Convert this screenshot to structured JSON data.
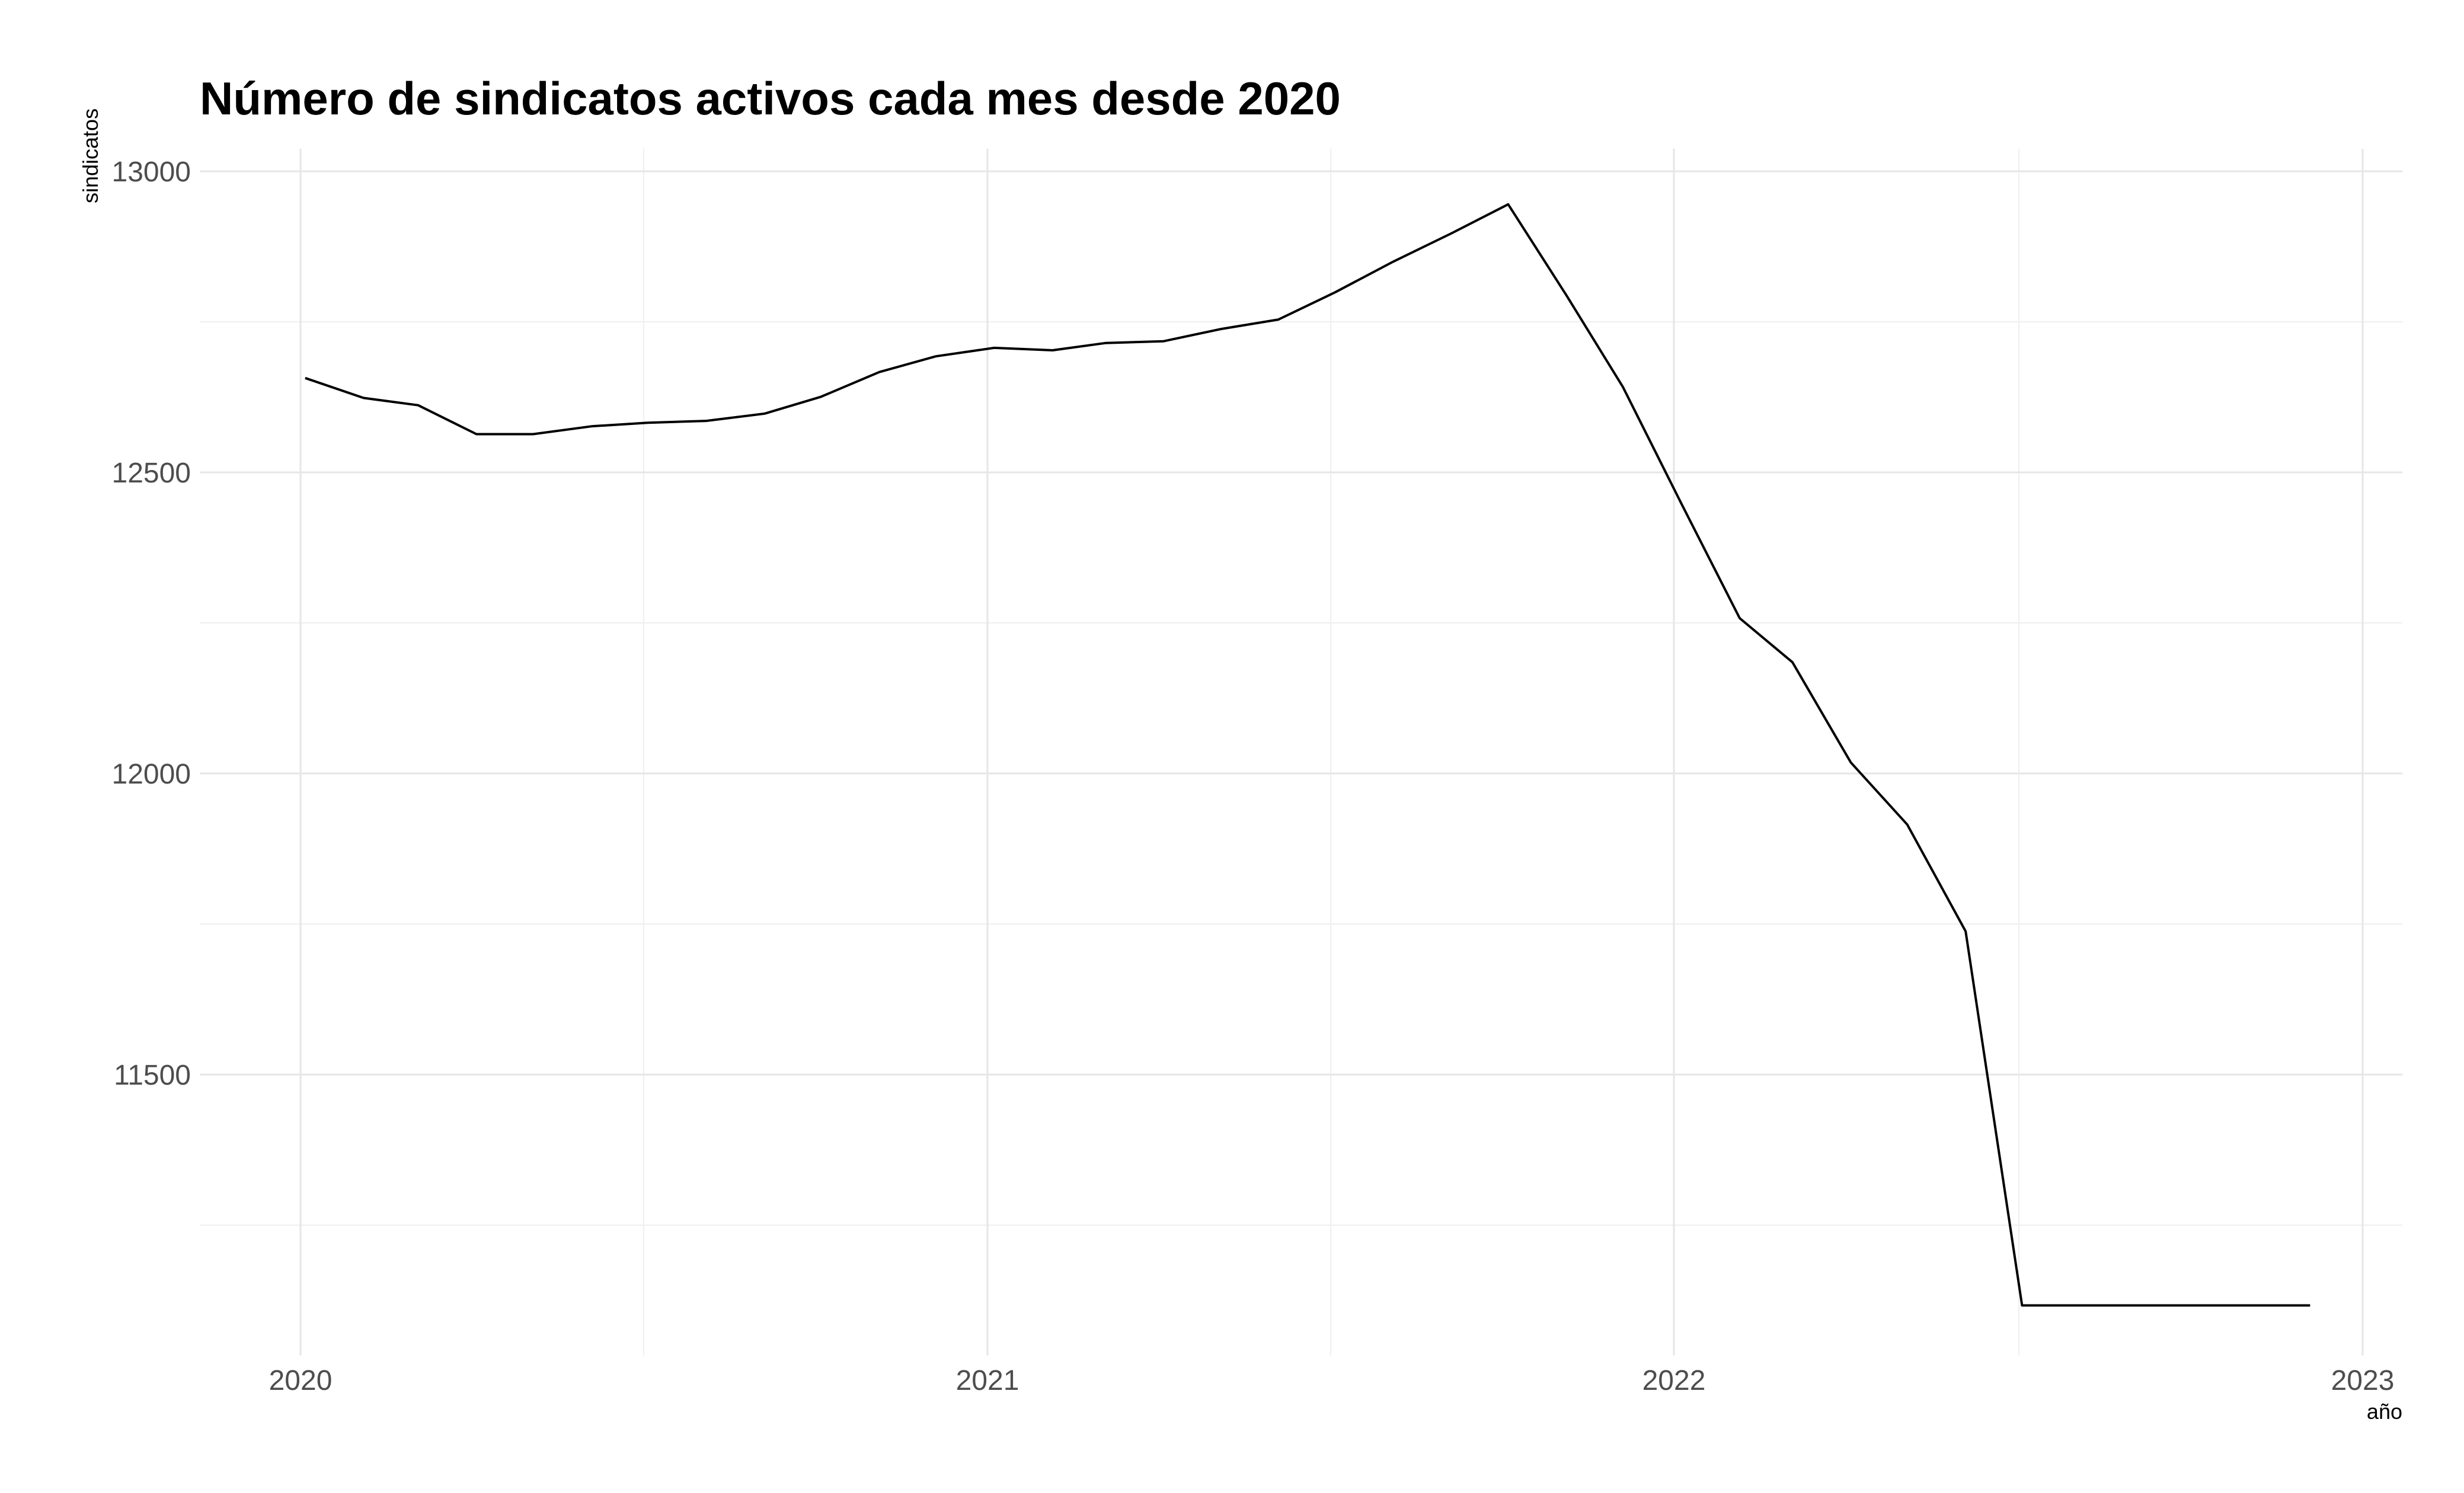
{
  "chart_data": {
    "type": "line",
    "title": "Número de sindicatos activos cada mes desde 2020",
    "xlabel": "año",
    "ylabel": "sindicatos",
    "x_tick_labels": [
      "2020",
      "2021",
      "2022",
      "2023"
    ],
    "y_tick_labels": [
      "11500",
      "12000",
      "12500",
      "13000"
    ],
    "y_ticks": [
      11500,
      12000,
      12500,
      13000
    ],
    "x_ticks": [
      "2020-01-01",
      "2021-01-01",
      "2022-01-01",
      "2023-01-01"
    ],
    "xlim": [
      "2019-11-06",
      "2023-01-19"
    ],
    "ylim": [
      11040,
      13040
    ],
    "grid": true,
    "series": [
      {
        "color": "#000000",
        "x": [
          "2020-01-01",
          "2020-02-01",
          "2020-03-01",
          "2020-04-01",
          "2020-05-01",
          "2020-06-01",
          "2020-07-01",
          "2020-08-01",
          "2020-09-01",
          "2020-10-01",
          "2020-11-01",
          "2020-12-01",
          "2021-01-01",
          "2021-02-01",
          "2021-03-01",
          "2021-04-01",
          "2021-05-01",
          "2021-06-01",
          "2021-07-01",
          "2021-08-01",
          "2021-09-01",
          "2021-10-01",
          "2021-11-01",
          "2021-12-01",
          "2022-01-01",
          "2022-02-01",
          "2022-03-01",
          "2022-04-01",
          "2022-05-01",
          "2022-06-01",
          "2022-07-01",
          "2022-08-01",
          "2022-09-01",
          "2022-10-01",
          "2022-11-01",
          "2022-12-01"
        ],
        "values": [
          12660,
          12627,
          12615,
          12567,
          12567,
          12580,
          12586,
          12589,
          12601,
          12629,
          12670,
          12696,
          12710,
          12706,
          12718,
          12721,
          12741,
          12757,
          12802,
          12853,
          12900,
          12948,
          12797,
          12645,
          12452,
          12262,
          12189,
          12023,
          11920,
          11743,
          11123,
          11123,
          11123,
          11123,
          11123,
          11123
        ]
      }
    ]
  }
}
